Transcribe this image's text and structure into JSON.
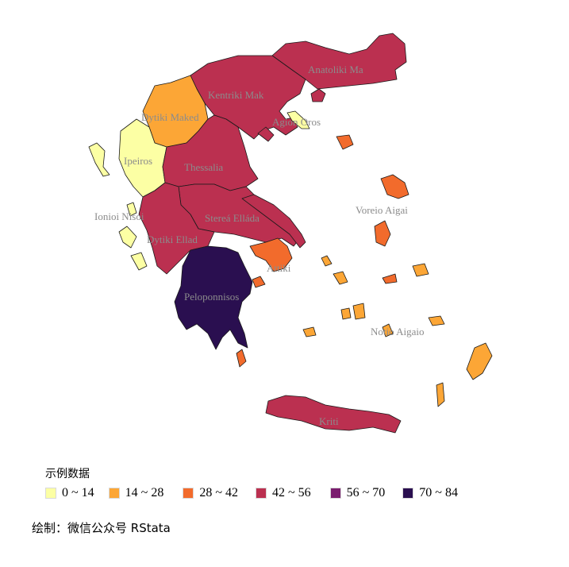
{
  "legend": {
    "title": "示例数据",
    "items": [
      {
        "label": "0 ~ 14",
        "color": "#FCFFA4"
      },
      {
        "label": "14 ~ 28",
        "color": "#FCA636"
      },
      {
        "label": "28 ~ 42",
        "color": "#F26B2C"
      },
      {
        "label": "42 ~ 56",
        "color": "#BB3050"
      },
      {
        "label": "56 ~ 70",
        "color": "#7A1D6E"
      },
      {
        "label": "70 ~ 84",
        "color": "#2A0F50"
      }
    ]
  },
  "regions": {
    "anatoliki": {
      "label": "Anatoliki Ma",
      "color": "#BB3050"
    },
    "kentriki": {
      "label": "Kentriki Mak",
      "color": "#BB3050"
    },
    "dytiki_mak": {
      "label": "Dytiki Maked",
      "color": "#FCA636"
    },
    "agion_oros": {
      "label": "Agion Oros",
      "color": "#FCFFA4"
    },
    "ipeiros": {
      "label": "Ipeiros",
      "color": "#FCFFA4"
    },
    "thessalia": {
      "label": "Thessalia",
      "color": "#BB3050"
    },
    "ionioi": {
      "label": "Ionioi Nisoi",
      "color": "#FCFFA4"
    },
    "sterea": {
      "label": "Stereá Elláda",
      "color": "#BB3050"
    },
    "dytiki_ellada": {
      "label": "Dytiki Ellad",
      "color": "#BB3050"
    },
    "voreio": {
      "label": "Voreio Aigai",
      "color": "#F26B2C"
    },
    "attiki": {
      "label": "Attiki",
      "color": "#F26B2C"
    },
    "peloponnisos": {
      "label": "Peloponnisos",
      "color": "#2A0F50"
    },
    "notio": {
      "label": "Notio Aigaio",
      "color": "#FCA636"
    },
    "kriti": {
      "label": "Kriti",
      "color": "#BB3050"
    }
  },
  "caption": "绘制：微信公众号 RStata"
}
